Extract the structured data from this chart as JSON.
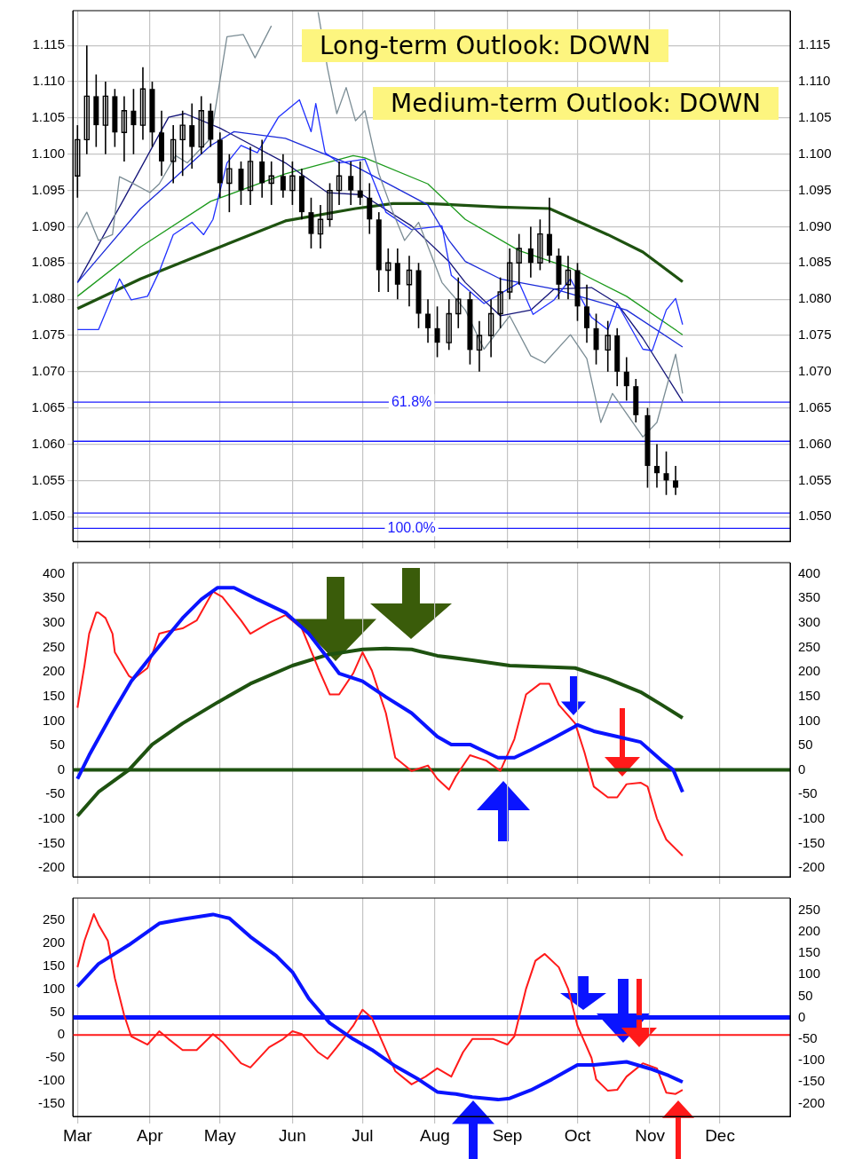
{
  "chart_data": [
    {
      "type": "candlestick",
      "color": "#000000",
      "tick_labels": "y",
      "grid": true,
      "legend": false,
      "x": [
        "--03-01",
        "--03-05",
        "--03-09",
        "--03-13",
        "--03-17",
        "--03-21",
        "--03-25",
        "--03-29",
        "--04-02",
        "--04-06",
        "--04-11",
        "--04-15",
        "--04-19",
        "--04-23",
        "--04-27",
        "--05-01",
        "--05-05",
        "--05-10",
        "--05-14",
        "--05-19",
        "--05-23",
        "--05-28",
        "--06-01",
        "--06-05",
        "--06-09",
        "--06-13",
        "--06-17",
        "--06-21",
        "--06-26",
        "--06-30",
        "--07-04",
        "--07-08",
        "--07-12",
        "--07-16",
        "--07-21",
        "--07-25",
        "--07-29",
        "--08-02",
        "--08-07",
        "--08-11",
        "--08-16",
        "--08-20",
        "--08-25",
        "--08-29",
        "--09-02",
        "--09-06",
        "--09-11",
        "--09-15",
        "--09-19",
        "--09-23",
        "--09-27",
        "--10-01",
        "--10-05",
        "--10-09",
        "--10-14",
        "--10-18",
        "--10-22",
        "--10-26",
        "--10-31",
        "--11-04",
        "--11-08",
        "--11-12"
      ],
      "ohlc": [
        [
          1.097,
          1.104,
          1.094,
          1.102
        ],
        [
          1.102,
          1.115,
          1.1,
          1.108
        ],
        [
          1.108,
          1.111,
          1.101,
          1.104
        ],
        [
          1.104,
          1.11,
          1.1,
          1.108
        ],
        [
          1.108,
          1.109,
          1.101,
          1.103
        ],
        [
          1.103,
          1.108,
          1.099,
          1.106
        ],
        [
          1.106,
          1.109,
          1.1,
          1.104
        ],
        [
          1.104,
          1.112,
          1.102,
          1.109
        ],
        [
          1.109,
          1.11,
          1.101,
          1.103
        ],
        [
          1.103,
          1.106,
          1.097,
          1.099
        ],
        [
          1.099,
          1.104,
          1.096,
          1.102
        ],
        [
          1.102,
          1.106,
          1.097,
          1.104
        ],
        [
          1.104,
          1.107,
          1.098,
          1.101
        ],
        [
          1.101,
          1.108,
          1.1,
          1.106
        ],
        [
          1.106,
          1.107,
          1.101,
          1.102
        ],
        [
          1.102,
          1.103,
          1.094,
          1.096
        ],
        [
          1.096,
          1.1,
          1.092,
          1.098
        ],
        [
          1.098,
          1.099,
          1.093,
          1.095
        ],
        [
          1.095,
          1.101,
          1.093,
          1.099
        ],
        [
          1.099,
          1.102,
          1.094,
          1.096
        ],
        [
          1.096,
          1.099,
          1.093,
          1.097
        ],
        [
          1.097,
          1.1,
          1.094,
          1.095
        ],
        [
          1.095,
          1.099,
          1.093,
          1.097
        ],
        [
          1.097,
          1.098,
          1.091,
          1.092
        ],
        [
          1.092,
          1.094,
          1.087,
          1.089
        ],
        [
          1.089,
          1.093,
          1.087,
          1.091
        ],
        [
          1.091,
          1.096,
          1.09,
          1.095
        ],
        [
          1.095,
          1.099,
          1.093,
          1.097
        ],
        [
          1.097,
          1.099,
          1.093,
          1.095
        ],
        [
          1.095,
          1.099,
          1.093,
          1.094
        ],
        [
          1.094,
          1.096,
          1.089,
          1.091
        ],
        [
          1.091,
          1.092,
          1.081,
          1.084
        ],
        [
          1.084,
          1.087,
          1.081,
          1.085
        ],
        [
          1.085,
          1.087,
          1.08,
          1.082
        ],
        [
          1.082,
          1.086,
          1.079,
          1.084
        ],
        [
          1.084,
          1.085,
          1.076,
          1.078
        ],
        [
          1.078,
          1.08,
          1.074,
          1.076
        ],
        [
          1.076,
          1.079,
          1.072,
          1.074
        ],
        [
          1.074,
          1.08,
          1.073,
          1.078
        ],
        [
          1.078,
          1.083,
          1.076,
          1.08
        ],
        [
          1.08,
          1.081,
          1.071,
          1.073
        ],
        [
          1.073,
          1.077,
          1.07,
          1.075
        ],
        [
          1.075,
          1.08,
          1.072,
          1.078
        ],
        [
          1.078,
          1.083,
          1.076,
          1.081
        ],
        [
          1.081,
          1.087,
          1.08,
          1.085
        ],
        [
          1.085,
          1.089,
          1.082,
          1.087
        ],
        [
          1.087,
          1.09,
          1.083,
          1.085
        ],
        [
          1.085,
          1.091,
          1.084,
          1.089
        ],
        [
          1.089,
          1.094,
          1.085,
          1.086
        ],
        [
          1.086,
          1.087,
          1.08,
          1.082
        ],
        [
          1.082,
          1.086,
          1.08,
          1.084
        ],
        [
          1.084,
          1.085,
          1.077,
          1.079
        ],
        [
          1.079,
          1.082,
          1.074,
          1.076
        ],
        [
          1.076,
          1.078,
          1.071,
          1.073
        ],
        [
          1.073,
          1.077,
          1.07,
          1.075
        ],
        [
          1.075,
          1.076,
          1.068,
          1.07
        ],
        [
          1.07,
          1.072,
          1.066,
          1.068
        ],
        [
          1.068,
          1.069,
          1.063,
          1.064
        ],
        [
          1.064,
          1.065,
          1.054,
          1.057
        ],
        [
          1.057,
          1.06,
          1.054,
          1.056
        ],
        [
          1.056,
          1.059,
          1.053,
          1.055
        ],
        [
          1.055,
          1.057,
          1.053,
          1.054
        ]
      ],
      "series": [
        {
          "type": "line",
          "color": "#7a8c94",
          "x": [
            "--03-01",
            "--03-05",
            "--03-10",
            "--03-16",
            "--03-19",
            "--03-24",
            "--04-01",
            "--04-05",
            "--04-12",
            "--04-17",
            "--04-27",
            "--05-04",
            "--05-11",
            "--05-16",
            "--05-23",
            "--06-01",
            "--06-12",
            "--06-16",
            "--06-20",
            "--06-24",
            "--06-28",
            "--07-02",
            "--07-08",
            "--07-14",
            "--07-19",
            "--07-25",
            "--08-04",
            "--08-14",
            "--08-22",
            "--09-02",
            "--09-11",
            "--09-17",
            "--09-28",
            "--10-05",
            "--10-11",
            "--10-16",
            "--10-29",
            "--11-04",
            "--11-12",
            "--11-15"
          ],
          "values": [
            1.0898,
            1.092,
            1.0881,
            1.0889,
            1.0969,
            1.0961,
            1.0947,
            1.0959,
            1.0998,
            1.0988,
            1.1022,
            1.1162,
            1.1165,
            1.1133,
            1.1177,
            null,
            1.1196,
            1.1119,
            1.1056,
            1.1092,
            1.1046,
            1.106,
            1.0973,
            1.092,
            1.0881,
            1.0906,
            1.0823,
            1.0785,
            1.0731,
            1.0777,
            1.0722,
            1.0712,
            1.0751,
            1.0718,
            1.063,
            1.067,
            1.061,
            1.063,
            1.0724,
            1.067
          ]
        },
        {
          "type": "line",
          "color": "#2030ff",
          "x": [
            "--03-01",
            "--03-10",
            "--03-19",
            "--03-24",
            "--03-31",
            "--04-05",
            "--04-11",
            "--04-19",
            "--04-24",
            "--04-28",
            "--05-04",
            "--05-10",
            "--05-17",
            "--05-26",
            "--06-04",
            "--06-09",
            "--06-11",
            "--06-15",
            "--06-21",
            "--07-02",
            "--07-11",
            "--07-22",
            "--08-04",
            "--08-08",
            "--08-22",
            "--09-06",
            "--09-12",
            "--09-21",
            "--09-28",
            "--10-07",
            "--10-14",
            "--10-18",
            "--10-29",
            "--11-02",
            "--11-08",
            "--11-12",
            "--11-15"
          ],
          "values": [
            1.0758,
            1.0758,
            1.0828,
            1.0799,
            1.0804,
            1.0838,
            1.0889,
            1.0906,
            1.0889,
            1.091,
            1.0988,
            1.1012,
            1.1002,
            1.1051,
            1.1075,
            1.1031,
            1.107,
            1.1002,
            1.0988,
            1.0993,
            1.092,
            1.0896,
            1.0901,
            1.0833,
            1.0794,
            1.0823,
            1.0779,
            1.0799,
            1.0828,
            1.0775,
            1.0758,
            1.0794,
            1.0731,
            1.0729,
            1.0785,
            1.0801,
            1.0765
          ]
        },
        {
          "type": "line",
          "color": "#1a2ad8",
          "x": [
            "--03-01",
            "--03-28",
            "--04-27",
            "--05-07",
            "--05-29",
            "--06-28",
            "--07-29",
            "--08-07",
            "--08-14",
            "--08-29",
            "--09-21",
            "--10-07",
            "--10-22",
            "--11-15"
          ],
          "values": [
            1.0823,
            1.0925,
            1.1012,
            1.1031,
            1.1022,
            1.0983,
            1.093,
            1.0881,
            1.0852,
            1.0828,
            1.0814,
            1.0799,
            1.0785,
            1.0734
          ]
        },
        {
          "type": "line",
          "color": "#141478",
          "x": [
            "--03-01",
            "--03-21",
            "--04-09",
            "--04-16",
            "--05-01",
            "--05-29",
            "--06-16",
            "--07-01",
            "--07-22",
            "--08-07",
            "--08-14",
            "--08-29",
            "--09-11",
            "--09-21",
            "--10-07",
            "--10-18",
            "--10-29",
            "--11-15"
          ],
          "values": [
            1.0823,
            1.0939,
            1.1051,
            1.1056,
            1.1036,
            1.0988,
            1.0947,
            1.0944,
            1.0901,
            1.0852,
            1.0823,
            1.0777,
            1.0785,
            1.0814,
            1.0816,
            1.0794,
            1.0746,
            1.0659
          ]
        },
        {
          "type": "line",
          "color": "#1c9a1c",
          "x": [
            "--03-01",
            "--03-28",
            "--04-27",
            "--05-29",
            "--06-27",
            "--07-02",
            "--07-29",
            "--08-14",
            "--09-06",
            "--09-28",
            "--10-22",
            "--11-15"
          ],
          "values": [
            1.0804,
            1.0872,
            1.0935,
            1.0973,
            1.0998,
            1.0995,
            1.0959,
            1.091,
            1.0867,
            1.0843,
            1.0804,
            1.0751
          ]
        },
        {
          "type": "line",
          "color": "#1e5210",
          "x": [
            "--03-01",
            "--03-28",
            "--04-27",
            "--05-29",
            "--06-28",
            "--07-14",
            "--07-29",
            "--08-29",
            "--09-19",
            "--10-14",
            "--10-29",
            "--11-15"
          ],
          "values": [
            1.0787,
            1.0828,
            1.0867,
            1.0908,
            1.0925,
            1.0932,
            1.0932,
            1.0927,
            1.0925,
            1.0889,
            1.0865,
            1.0824
          ]
        }
      ],
      "xlim": [
        "--02-27",
        "--12-31"
      ],
      "xticks": [
        {
          "value": "--03-01",
          "label": null
        },
        {
          "value": "--04-01",
          "label": null
        },
        {
          "value": "--05-01",
          "label": null
        },
        {
          "value": "--06-01",
          "label": null
        },
        {
          "value": "--07-01",
          "label": null
        },
        {
          "value": "--08-01",
          "label": null
        },
        {
          "value": "--09-01",
          "label": null
        },
        {
          "value": "--10-01",
          "label": null
        },
        {
          "value": "--11-01",
          "label": null
        },
        {
          "value": "--12-01",
          "label": null
        }
      ],
      "ylim": [
        1.0466,
        1.1198
      ],
      "yticks": [
        {
          "value": 1.05,
          "label": "1.050"
        },
        1.055,
        {
          "value": 1.06,
          "label": "1.060"
        },
        1.065,
        {
          "value": 1.07,
          "label": "1.070"
        },
        1.075,
        {
          "value": 1.08,
          "label": "1.080"
        },
        1.085,
        {
          "value": 1.09,
          "label": "1.090"
        },
        1.095,
        {
          "value": 1.1,
          "label": "1.100"
        },
        1.105,
        {
          "value": 1.11,
          "label": "1.110"
        },
        1.115
      ],
      "y2lim": [
        1.0466,
        1.1198
      ],
      "y2ticks": [
        {
          "value": 1.05,
          "label": "1.050"
        },
        1.055,
        {
          "value": 1.06,
          "label": "1.060"
        },
        1.065,
        {
          "value": 1.07,
          "label": "1.070"
        },
        1.075,
        {
          "value": 1.08,
          "label": "1.080"
        },
        1.085,
        {
          "value": 1.09,
          "label": "1.090"
        },
        1.095,
        {
          "value": 1.1,
          "label": "1.100"
        },
        1.105,
        {
          "value": 1.11,
          "label": "1.110"
        },
        1.115
      ],
      "ref_lines": [
        {
          "axis": "y",
          "value": 1.0658,
          "color": "#1a1aff"
        },
        {
          "axis": "y",
          "value": 1.0604,
          "color": "#1a1aff"
        },
        {
          "axis": "y",
          "value": 1.0505,
          "color": "#1a1aff"
        },
        {
          "axis": "y",
          "value": 1.0484,
          "color": "#1a1aff"
        }
      ],
      "annotations": [
        "Long-term Outlook: DOWN",
        "Medium-term Outlook: DOWN",
        {
          "text": "61.8%",
          "x": "--07-22",
          "y": 1.0658
        },
        {
          "text": "100.0%",
          "x": "--07-22",
          "y": 1.0484
        }
      ]
    },
    {
      "type": "line",
      "tick_labels": "y",
      "grid": "x",
      "legend": false,
      "series": [
        {
          "color": "#0a14ff",
          "x": [
            "--03-01",
            "--03-06",
            "--03-16",
            "--03-24",
            "--04-02",
            "--04-15",
            "--04-23",
            "--04-30",
            "--05-07",
            "--05-17",
            "--05-29",
            "--06-08",
            "--06-15",
            "--06-21",
            "--07-01",
            "--07-11",
            "--07-22",
            "--08-02",
            "--08-08",
            "--08-16",
            "--08-23",
            "--08-28",
            "--09-04",
            "--09-11",
            "--09-20",
            "--09-30",
            "--10-01",
            "--10-08",
            "--10-18",
            "--10-28",
            "--11-06",
            "--11-11",
            "--11-15"
          ],
          "values": [
            -18,
            30,
            116,
            181,
            235,
            310,
            348,
            372,
            372,
            348,
            321,
            278,
            235,
            197,
            181,
            149,
            116,
            68,
            52,
            52,
            36,
            25,
            25,
            41,
            63,
            89,
            92,
            79,
            68,
            57,
            19,
            0,
            -45
          ]
        },
        {
          "color": "#ff1a1a",
          "x": [
            "--03-01",
            "--03-04",
            "--03-06",
            "--03-09",
            "--03-10",
            "--03-13",
            "--03-16",
            "--03-17",
            "--03-23",
            "--03-25",
            "--03-31",
            "--04-05",
            "--04-09",
            "--04-15",
            "--04-21",
            "--04-28",
            "--05-02",
            "--05-10",
            "--05-14",
            "--05-22",
            "--05-29",
            "--06-05",
            "--06-12",
            "--06-17",
            "--06-21",
            "--06-27",
            "--07-01",
            "--07-05",
            "--07-11",
            "--07-15",
            "--07-22",
            "--07-29",
            "--08-02",
            "--08-07",
            "--08-10",
            "--08-16",
            "--08-23",
            "--08-29",
            "--09-04",
            "--09-09",
            "--09-15",
            "--09-19",
            "--09-23",
            "--09-30",
            "--10-04",
            "--10-08",
            "--10-14",
            "--10-18",
            "--10-22",
            "--10-28",
            "--10-31",
            "--11-04",
            "--11-08",
            "--11-15"
          ],
          "values": [
            127,
            213,
            278,
            321,
            321,
            310,
            278,
            240,
            192,
            186,
            208,
            278,
            283,
            289,
            305,
            364,
            353,
            305,
            278,
            300,
            316,
            289,
            208,
            154,
            154,
            197,
            240,
            203,
            116,
            25,
            -2,
            9,
            -18,
            -40,
            -13,
            30,
            19,
            -2,
            63,
            154,
            176,
            176,
            133,
            95,
            36,
            -34,
            -56,
            -56,
            -29,
            -26,
            -34,
            -99,
            -142,
            -175
          ]
        },
        {
          "color": "#1e5210",
          "x": [
            "--03-01",
            "--03-10",
            "--03-23",
            "--04-02",
            "--04-15",
            "--04-30",
            "--05-14",
            "--06-01",
            "--06-16",
            "--07-01",
            "--07-11",
            "--07-22",
            "--08-02",
            "--08-17",
            "--09-02",
            "--09-20",
            "--09-30",
            "--10-14",
            "--10-28",
            "--11-06",
            "--11-15"
          ],
          "values": [
            -94,
            -45,
            0,
            52,
            95,
            138,
            176,
            213,
            235,
            246,
            248,
            246,
            233,
            224,
            213,
            210,
            208,
            186,
            159,
            133,
            106
          ]
        }
      ],
      "xlim": [
        "--02-27",
        "--12-31"
      ],
      "xticks": [
        {
          "value": "--03-01",
          "label": null
        },
        {
          "value": "--04-01",
          "label": null
        },
        {
          "value": "--05-01",
          "label": null
        },
        {
          "value": "--06-01",
          "label": null
        },
        {
          "value": "--07-01",
          "label": null
        },
        {
          "value": "--08-01",
          "label": null
        },
        {
          "value": "--09-01",
          "label": null
        },
        {
          "value": "--10-01",
          "label": null
        },
        {
          "value": "--11-01",
          "label": null
        },
        {
          "value": "--12-01",
          "label": null
        }
      ],
      "ylim": [
        -218,
        423
      ],
      "yticks": [
        -200,
        -150,
        -100,
        -50,
        0,
        50,
        100,
        150,
        200,
        250,
        300,
        350,
        400
      ],
      "y2lim": [
        -218,
        423
      ],
      "y2ticks": [
        -200,
        -150,
        -100,
        -50,
        0,
        50,
        100,
        150,
        200,
        250,
        300,
        350,
        400
      ],
      "ref_lines": [
        {
          "axis": "y",
          "value": 0,
          "color": "#1e5210"
        }
      ]
    },
    {
      "type": "line",
      "grid": "x",
      "legend": false,
      "series": [
        {
          "color": "#0a14ff",
          "axis": "y2",
          "x": [
            "--03-01",
            "--03-10",
            "--03-23",
            "--04-05",
            "--04-15",
            "--04-28",
            "--05-05",
            "--05-14",
            "--05-25",
            "--06-01",
            "--06-08",
            "--06-17",
            "--06-27",
            "--07-05",
            "--07-15",
            "--07-25",
            "--08-02",
            "--08-10",
            "--08-17",
            "--08-28",
            "--09-02",
            "--09-11",
            "--09-20",
            "--10-01",
            "--10-08",
            "--10-22",
            "--11-01",
            "--11-09",
            "--11-15"
          ],
          "values": [
            72,
            125,
            169,
            219,
            229,
            240,
            231,
            188,
            144,
            106,
            44,
            -13,
            -50,
            -75,
            -113,
            -144,
            -173,
            -178,
            -185,
            -191,
            -188,
            -169,
            -144,
            -110,
            -110,
            -103,
            -119,
            -135,
            -150
          ]
        },
        {
          "color": "#ff1a1a",
          "x": [
            "--03-01",
            "--03-04",
            "--03-08",
            "--03-10",
            "--03-14",
            "--03-17",
            "--03-21",
            "--03-24",
            "--03-31",
            "--04-05",
            "--04-09",
            "--04-15",
            "--04-21",
            "--04-28",
            "--05-02",
            "--05-10",
            "--05-14",
            "--05-22",
            "--05-28",
            "--06-01",
            "--06-05",
            "--06-12",
            "--06-16",
            "--06-20",
            "--06-27",
            "--07-01",
            "--07-05",
            "--07-11",
            "--07-15",
            "--07-22",
            "--07-28",
            "--08-02",
            "--08-08",
            "--08-13",
            "--08-17",
            "--08-26",
            "--09-01",
            "--09-04",
            "--09-09",
            "--09-13",
            "--09-17",
            "--09-23",
            "--09-27",
            "--10-01",
            "--10-07",
            "--10-09",
            "--10-14",
            "--10-18",
            "--10-22",
            "--10-29",
            "--11-04",
            "--11-08",
            "--11-12",
            "--11-15"
          ],
          "values": [
            148,
            206,
            264,
            241,
            206,
            124,
            43,
            -3,
            -21,
            8,
            -9,
            -33,
            -33,
            2,
            -15,
            -62,
            -71,
            -27,
            -9,
            8,
            2,
            -38,
            -52,
            -27,
            20,
            55,
            37,
            -33,
            -79,
            -108,
            -91,
            -73,
            -91,
            -38,
            -9,
            -9,
            -21,
            -3,
            101,
            162,
            177,
            148,
            101,
            20,
            -50,
            -97,
            -122,
            -120,
            -91,
            -62,
            -73,
            -126,
            -129,
            -120
          ]
        }
      ],
      "xlim": [
        "--02-27",
        "--12-31"
      ],
      "xticks": [
        {
          "value": "--03-01",
          "label": "Mar"
        },
        {
          "value": "--04-01",
          "label": "Apr"
        },
        {
          "value": "--05-01",
          "label": "May"
        },
        {
          "value": "--06-01",
          "label": "Jun"
        },
        {
          "value": "--07-01",
          "label": "Jul"
        },
        {
          "value": "--08-01",
          "label": "Aug"
        },
        {
          "value": "--09-01",
          "label": "Sep"
        },
        {
          "value": "--10-01",
          "label": "Oct"
        },
        {
          "value": "--11-01",
          "label": "Nov"
        },
        {
          "value": "--12-01",
          "label": "Dec"
        }
      ],
      "ylim": [
        -178,
        299
      ],
      "yticks": [
        -150,
        -100,
        -50,
        0,
        50,
        100,
        150,
        200,
        250
      ],
      "y2lim": [
        -230,
        278
      ],
      "y2ticks": [
        -200,
        -150,
        -100,
        -50,
        0,
        50,
        100,
        150,
        200,
        250
      ],
      "ref_lines": [
        {
          "axis": "y2",
          "value": 0,
          "color": "#0a14ff"
        },
        {
          "axis": "y",
          "value": 0,
          "color": "#ff1a1a"
        }
      ]
    }
  ]
}
